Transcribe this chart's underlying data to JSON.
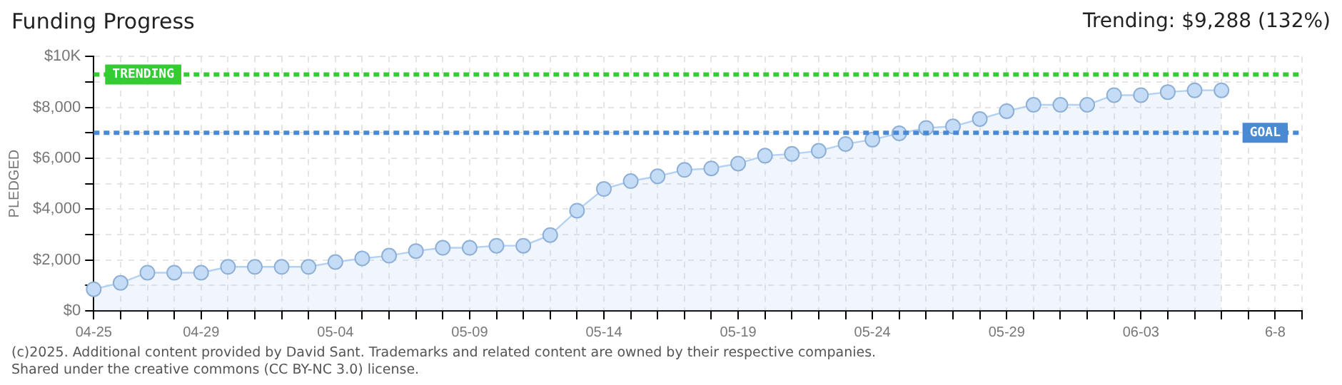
{
  "chart_data": {
    "type": "area",
    "title": "Funding Progress",
    "subtitle": "Trending: $9,288 (132%)",
    "ylabel": "PLEDGED",
    "categories": [
      "04-25",
      null,
      null,
      null,
      "04-29",
      null,
      null,
      null,
      null,
      "05-04",
      null,
      null,
      null,
      null,
      "05-09",
      null,
      null,
      null,
      null,
      "05-14",
      null,
      null,
      null,
      null,
      "05-19",
      null,
      null,
      null,
      null,
      "05-24",
      null,
      null,
      null,
      null,
      "05-29",
      null,
      null,
      null,
      null,
      "06-03",
      null,
      null,
      null,
      null,
      "6-8",
      null
    ],
    "series": [
      {
        "color": "#b3d1f2",
        "values": [
          850,
          1100,
          1500,
          1500,
          1500,
          1730,
          1730,
          1730,
          1730,
          1920,
          2060,
          2170,
          2350,
          2480,
          2480,
          2560,
          2560,
          2980,
          3940,
          4790,
          5100,
          5290,
          5540,
          5600,
          5790,
          6100,
          6170,
          6290,
          6560,
          6730,
          6980,
          7190,
          7250,
          7540,
          7850,
          8100,
          8100,
          8100,
          8480,
          8480,
          8600,
          8670,
          8670,
          null,
          null,
          null
        ]
      }
    ],
    "ylim": [
      0,
      10000
    ],
    "yticks": [
      {
        "value": 0,
        "label": "$0"
      },
      {
        "value": 1000,
        "label": null
      },
      {
        "value": 2000,
        "label": "$2,000"
      },
      {
        "value": 3000,
        "label": null
      },
      {
        "value": 4000,
        "label": "$4,000"
      },
      {
        "value": 5000,
        "label": null
      },
      {
        "value": 6000,
        "label": "$6,000"
      },
      {
        "value": 7000,
        "label": null
      },
      {
        "value": 8000,
        "label": "$8,000"
      },
      {
        "value": 9000,
        "label": null
      },
      {
        "value": 10000,
        "label": "$10K"
      }
    ],
    "ref_lines": [
      {
        "axis": "y",
        "value": 9288,
        "label": "TRENDING",
        "color": "#33cc33",
        "line_style": "dashed"
      },
      {
        "axis": "y",
        "value": 7000,
        "label": "GOAL",
        "color": "#4a8ad4",
        "line_style": "dashed"
      }
    ],
    "grid": true,
    "legend": false,
    "marker": "circle",
    "line_style": "solid",
    "annotations": [
      "(c)2025. Additional content provided by David Sant. Trademarks and related content are owned by their respective companies.",
      "Shared under the creative commons (CC BY-NC 3.0) license."
    ]
  }
}
